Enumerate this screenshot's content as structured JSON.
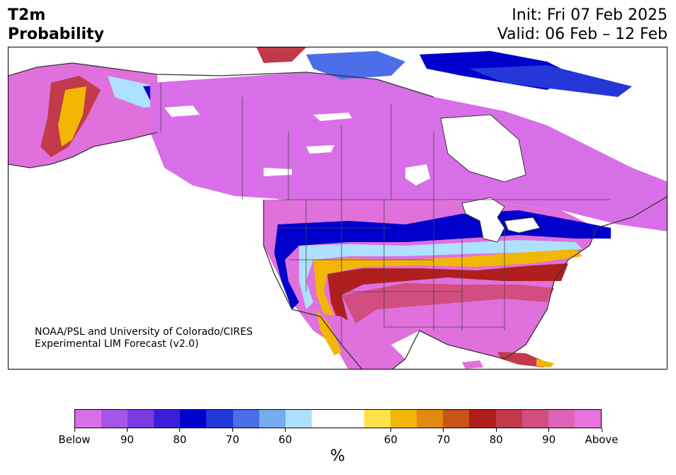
{
  "header": {
    "variable": "T2m",
    "product": "Probability",
    "init": "Init: Fri 07 Feb 2025",
    "valid": "Valid: 06 Feb – 12 Feb"
  },
  "credit": {
    "line1": "NOAA/PSL and University of Colorado/CIRES",
    "line2": "Experimental LIM Forecast (v2.0)"
  },
  "colorbar": {
    "unit": "%",
    "colors": [
      "#d96fe8",
      "#a656e6",
      "#7a3ce0",
      "#3d1ed8",
      "#0000cc",
      "#2437d8",
      "#4c6ee8",
      "#75aef0",
      "#aee0ff",
      "#ffffff",
      "#ffffff",
      "#ffe14a",
      "#f2b705",
      "#e08a10",
      "#c95418",
      "#b01e1e",
      "#c23a4a",
      "#d24e80",
      "#de62b8",
      "#e874dc"
    ],
    "tick_labels": [
      "Below",
      "90",
      "80",
      "70",
      "60",
      "60",
      "70",
      "80",
      "90",
      "Above"
    ]
  },
  "map": {
    "description_colors": {
      "above": "#e070dc",
      "below": "#d96fe8",
      "land_outline": "#333333"
    }
  }
}
